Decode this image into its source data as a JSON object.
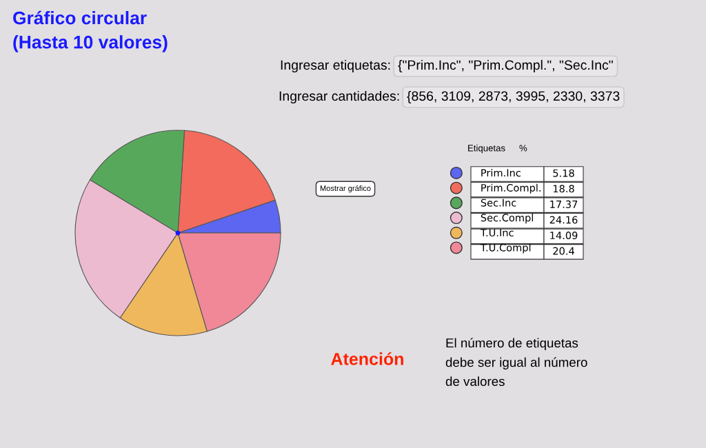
{
  "chart_data": {
    "type": "pie",
    "title": "Gráfico circular\n(Hasta 10 valores)",
    "categories": [
      "Prim.Inc",
      "Prim.Compl.",
      "Sec.Inc",
      "Sec.Compl",
      "T.U.Inc",
      "T.U.Compl"
    ],
    "values": [
      5.18,
      18.8,
      17.37,
      24.16,
      14.09,
      20.4
    ],
    "colors": [
      "#5c66f0",
      "#f26b5c",
      "#58a85c",
      "#ecbbd0",
      "#f0b85c",
      "#f08898"
    ],
    "data_labels": true,
    "legend": "right",
    "annotations": [
      "Ingresar etiquetas:",
      "{\"Prim.Inc\", \"Prim.Compl.\", \"Sec.Inc\"",
      "Ingresar cantidades:",
      "{856, 3109, 2873, 3995, 2330, 3373",
      "Mostrar gráfico",
      "Etiquetas",
      "%",
      "Atención",
      "El número de etiquetas\ndebe ser igual al número\nde valores"
    ]
  }
}
